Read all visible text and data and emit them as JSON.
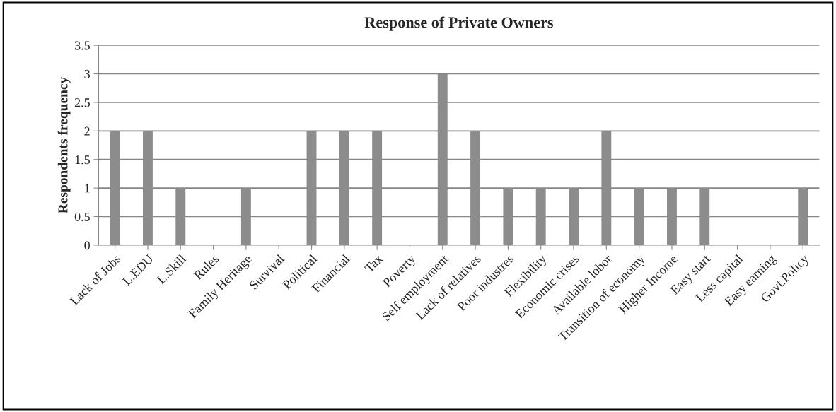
{
  "chart_data": {
    "type": "bar",
    "title": "Response of Private Owners",
    "ylabel": "Respondents frequency",
    "categories": [
      "Lack of Jobs",
      "L.EDU",
      "L.Skill",
      "Rules",
      "Family Heritage",
      "Survival",
      "Political",
      "Financial",
      "Tax",
      "Poverty",
      "Self employment",
      "Lack of relatives",
      "Poor industres",
      "Flexibility",
      "Economic crises",
      "Available lobor",
      "Transition of economy",
      "Higher Income",
      "Easy start",
      "Less capital",
      "Easy earning",
      "Govt.Policy"
    ],
    "values": [
      2,
      2,
      1,
      0,
      1,
      0,
      2,
      2,
      2,
      0,
      3,
      2,
      1,
      1,
      1,
      2,
      1,
      1,
      1,
      0,
      0,
      1
    ],
    "color": "#8c8c8c",
    "ylim": [
      0,
      3.5
    ],
    "yticks": [
      0,
      0.5,
      1,
      1.5,
      2,
      2.5,
      3,
      3.5
    ],
    "grid": "y"
  }
}
